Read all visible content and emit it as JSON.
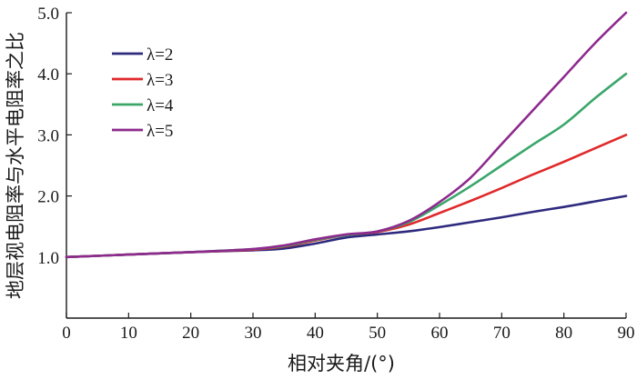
{
  "chart_data": {
    "type": "line",
    "xlabel": "相对夹角/(°)",
    "ylabel": "地层视电阻率与水平电阻率之比",
    "xlim": [
      0,
      90
    ],
    "ylim": [
      0,
      5.0
    ],
    "x_ticks": [
      0,
      10,
      20,
      30,
      40,
      50,
      60,
      70,
      80,
      90
    ],
    "x_tick_labels": [
      "0",
      "10",
      "20",
      "30",
      "40",
      "50",
      "60",
      "70",
      "80",
      "90"
    ],
    "y_ticks": [
      1.0,
      2.0,
      3.0,
      4.0,
      5.0
    ],
    "y_tick_labels": [
      "1.0",
      "2.0",
      "3.0",
      "4.0",
      "5.0"
    ],
    "grid": false,
    "legend_position": "top-left",
    "x": [
      0,
      10,
      20,
      30,
      35,
      40,
      45,
      50,
      55,
      60,
      65,
      70,
      75,
      80,
      85,
      90
    ],
    "series": [
      {
        "name": "λ=2",
        "color": "#2e2a7e",
        "values": [
          1.0,
          1.04,
          1.08,
          1.11,
          1.14,
          1.22,
          1.32,
          1.37,
          1.42,
          1.49,
          1.57,
          1.65,
          1.74,
          1.82,
          1.91,
          2.0
        ]
      },
      {
        "name": "λ=3",
        "color": "#e0292b",
        "values": [
          1.0,
          1.04,
          1.08,
          1.12,
          1.17,
          1.27,
          1.36,
          1.41,
          1.53,
          1.72,
          1.92,
          2.13,
          2.35,
          2.56,
          2.78,
          3.0
        ]
      },
      {
        "name": "λ=4",
        "color": "#3aa66a",
        "values": [
          1.0,
          1.04,
          1.08,
          1.13,
          1.18,
          1.28,
          1.36,
          1.42,
          1.57,
          1.85,
          2.16,
          2.5,
          2.84,
          3.17,
          3.6,
          4.0
        ]
      },
      {
        "name": "λ=5",
        "color": "#8e2a8e",
        "values": [
          1.0,
          1.04,
          1.08,
          1.13,
          1.19,
          1.29,
          1.37,
          1.42,
          1.59,
          1.9,
          2.3,
          2.85,
          3.4,
          3.95,
          4.5,
          5.0
        ]
      }
    ]
  }
}
